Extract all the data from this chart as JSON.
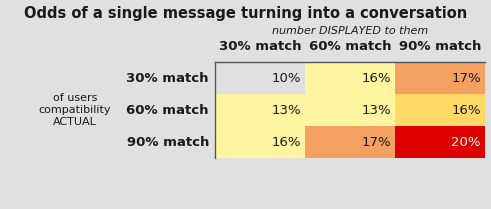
{
  "title": "Odds of a single message turning into a conversation",
  "col_header_label": "number DISPLAYED to them",
  "col_labels": [
    "30% match",
    "60% match",
    "90% match"
  ],
  "row_labels": [
    "30% match",
    "60% match",
    "90% match"
  ],
  "row_group_label_lines": [
    "ACTUAL",
    "compatibility",
    "of users"
  ],
  "values": [
    [
      "10%",
      "16%",
      "17%"
    ],
    [
      "13%",
      "13%",
      "16%"
    ],
    [
      "16%",
      "17%",
      "20%"
    ]
  ],
  "cell_colors": [
    [
      "none",
      "#FFF5A0",
      "#F4A060",
      "#F4A060"
    ],
    [
      "#FFF5A0",
      "#FFF5A0",
      "#FFF5A0",
      "#FFD966"
    ],
    [
      "#FFF5A0",
      "#FFD966",
      "#F4A060",
      "#DD0000"
    ]
  ],
  "cell_colors3x3": [
    [
      "none",
      "#FFF5A0",
      "#F4A060"
    ],
    [
      "#FFF5A0",
      "#FFF5A0",
      "#FFD966"
    ],
    [
      "#FFF5A0",
      "#F4A060",
      "#DD0000"
    ]
  ],
  "background_color": "#E0E0E0",
  "text_color": "#1A1A1A",
  "title_fontsize": 10.5,
  "subheader_fontsize": 8,
  "col_header_fontsize": 9.5,
  "cell_fontsize": 9.5,
  "row_label_fontsize": 9.5,
  "group_label_fontsize": 8
}
